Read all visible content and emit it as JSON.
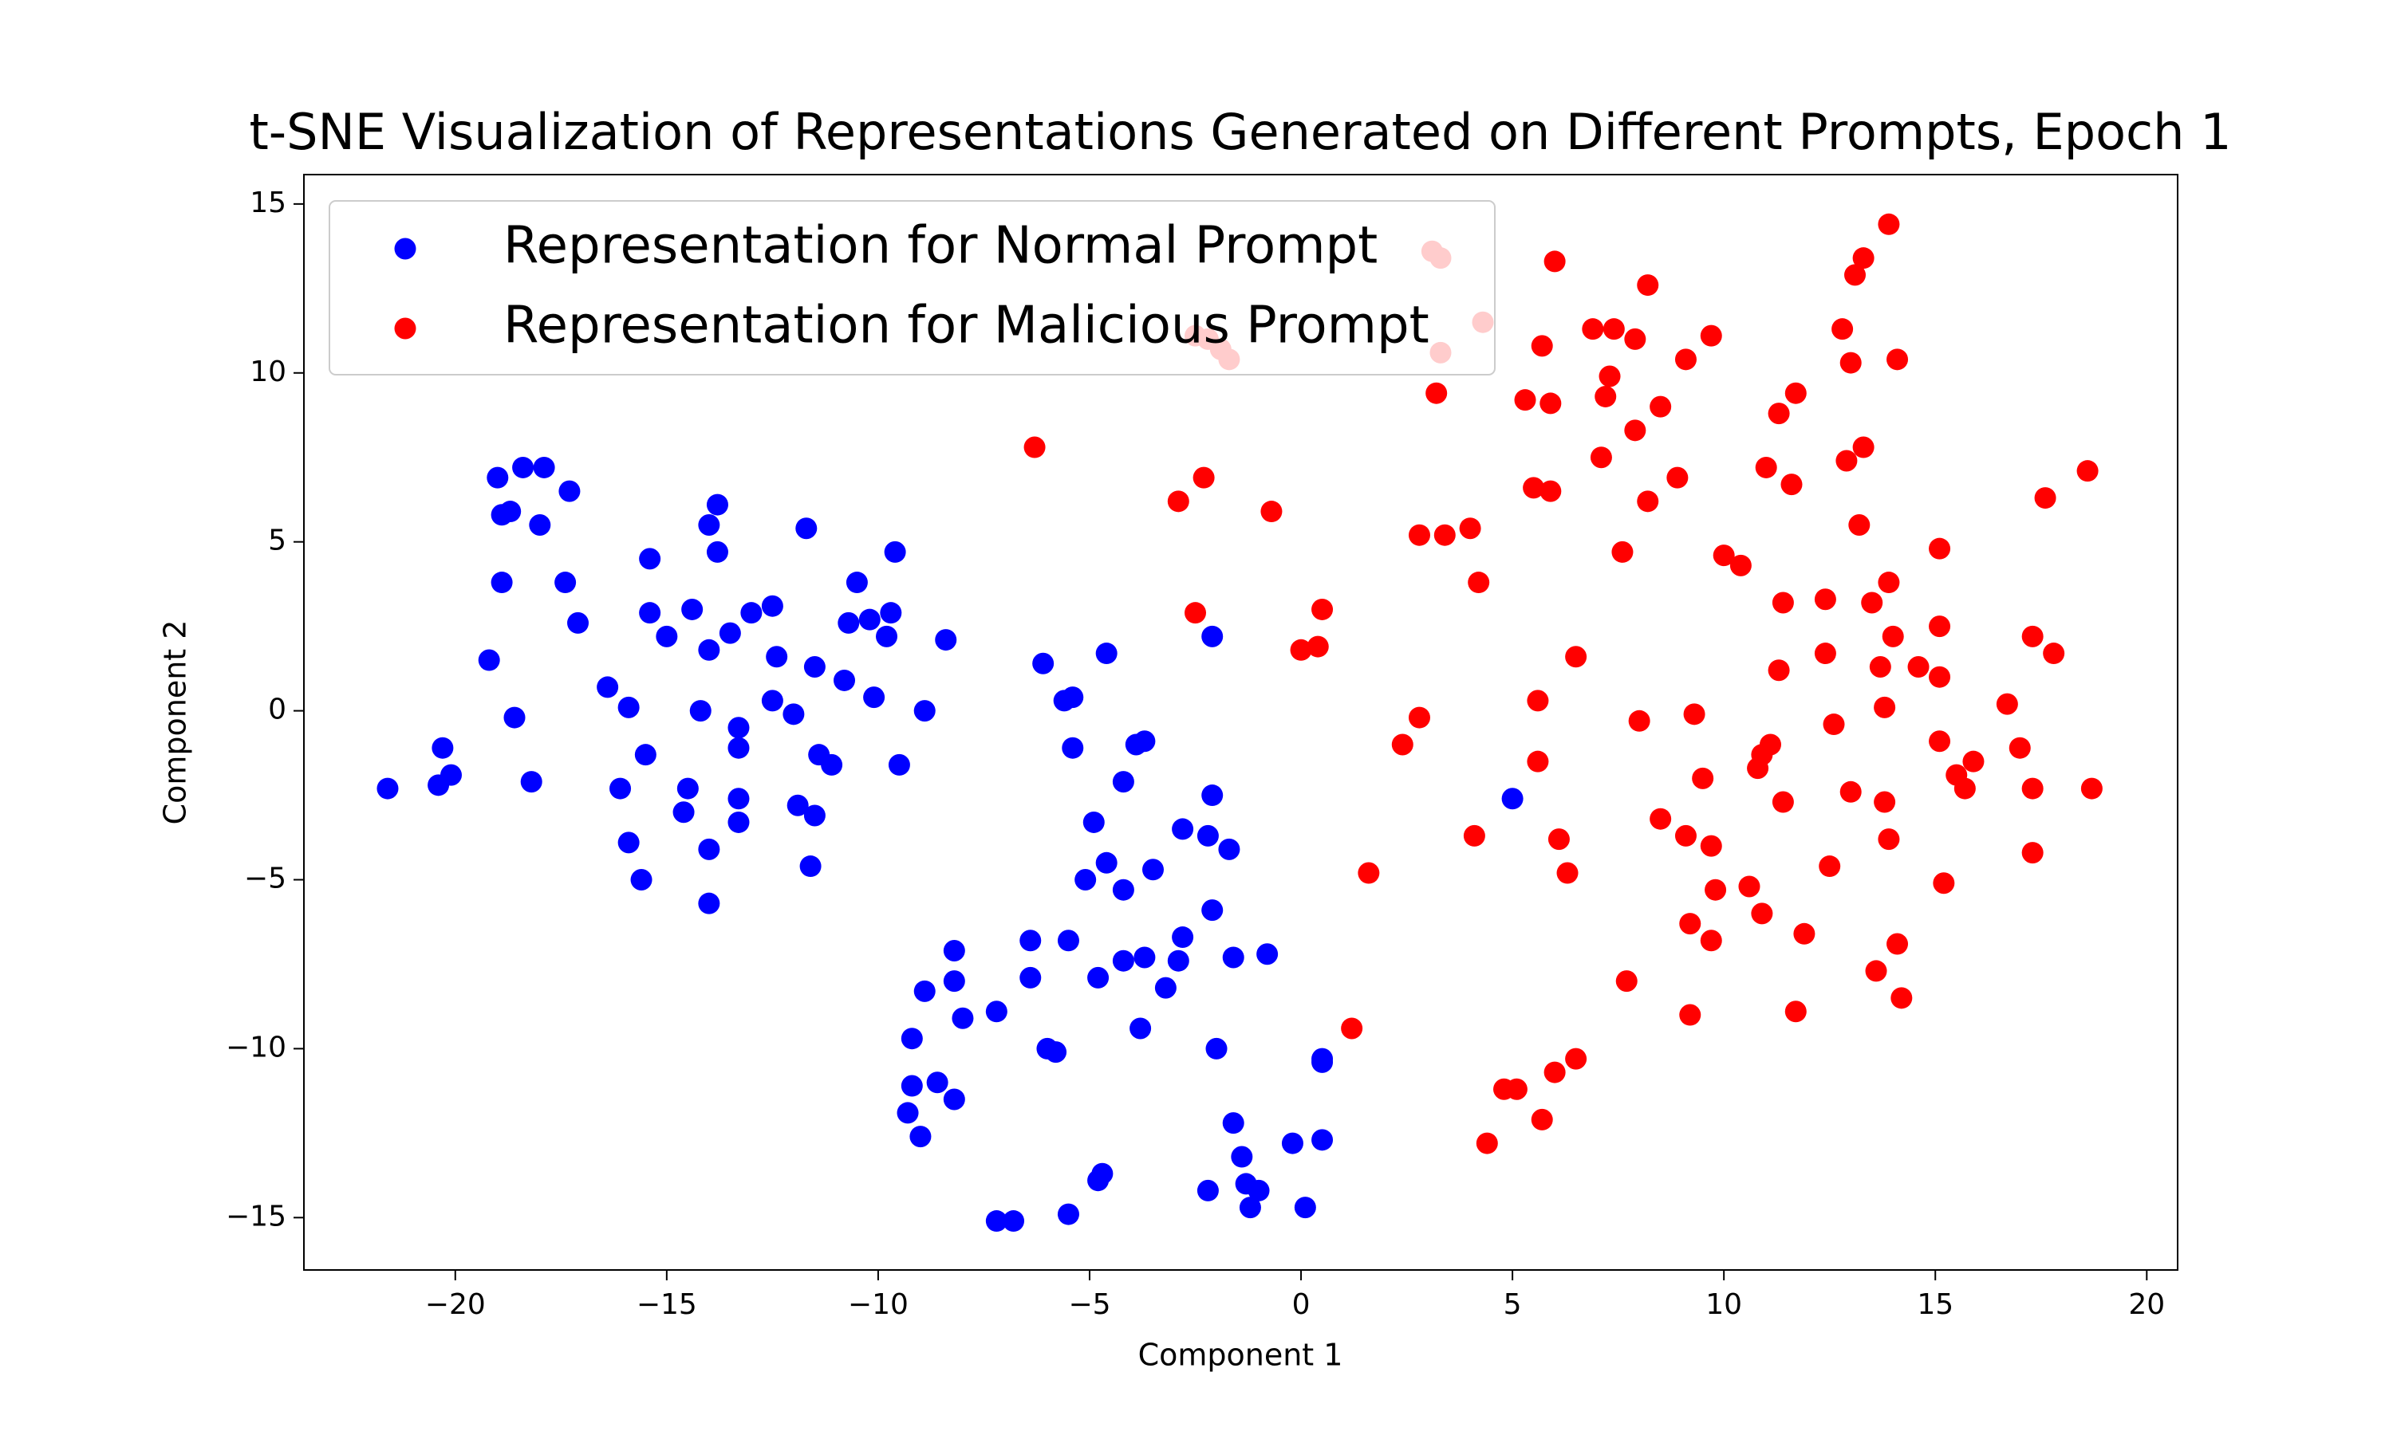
{
  "chart_data": {
    "type": "scatter",
    "title": "t-SNE Visualization of Representations Generated on Different Prompts, Epoch 1",
    "x_label": "Component 1",
    "y_label": "Component 2",
    "xlim": [
      -23.58,
      20.73
    ],
    "ylim": [
      -16.55,
      15.87
    ],
    "xticks": [
      {
        "value": -20,
        "label": "−20"
      },
      {
        "value": -15,
        "label": "−15"
      },
      {
        "value": -10,
        "label": "−10"
      },
      {
        "value": -5,
        "label": "−5"
      },
      0,
      5,
      10,
      15,
      20
    ],
    "yticks": [
      {
        "value": -15,
        "label": "−15"
      },
      {
        "value": -10,
        "label": "−10"
      },
      {
        "value": -5,
        "label": "−5"
      },
      0,
      5,
      10,
      15
    ],
    "legend": "upper left",
    "series": [
      {
        "name": "Representation for Normal Prompt",
        "color": "#0000ff",
        "x": [
          -21.6,
          -20.4,
          -20.3,
          -20.1,
          -19.0,
          -18.9,
          -18.7,
          -18.9,
          -19.2,
          -18.6,
          -18.4,
          -17.9,
          -18.0,
          -18.2,
          -17.3,
          -17.4,
          -17.1,
          -16.4,
          -15.9,
          -16.1,
          -15.9,
          -15.6,
          -15.4,
          -15.4,
          -15.0,
          -15.5,
          -14.4,
          -14.0,
          -13.8,
          -13.8,
          -13.5,
          -14.0,
          -14.2,
          -14.5,
          -14.6,
          -14.0,
          -14.0,
          -13.3,
          -13.3,
          -13.3,
          -13.3,
          -13.0,
          -12.5,
          -12.4,
          -12.5,
          -12.0,
          -11.7,
          -11.5,
          -11.4,
          -11.1,
          -11.9,
          -11.5,
          -11.6,
          -10.8,
          -10.5,
          -10.7,
          -10.2,
          -10.1,
          -9.8,
          -9.7,
          -9.6,
          -9.5,
          -8.9,
          -8.4,
          -6.1,
          -5.6,
          -5.4,
          -4.6,
          -5.4,
          -3.9,
          -3.7,
          -4.2,
          -4.9,
          -5.1,
          -4.6,
          -4.2,
          -3.5,
          -2.8,
          -2.2,
          -1.7,
          -2.1,
          -2.1,
          -2.1,
          -2.8,
          -1.6,
          -0.8,
          -2.9,
          -3.2,
          -3.7,
          -4.2,
          -4.8,
          -3.8,
          -5.5,
          -6.4,
          -6.4,
          -7.2,
          -8.2,
          -8.2,
          -8.0,
          -8.9,
          -9.2,
          -9.2,
          -9.3,
          -9.0,
          -8.6,
          -8.2,
          -6.0,
          -5.8,
          -2.0,
          -1.6,
          -1.4,
          -1.3,
          -1.0,
          -1.2,
          -2.2,
          -0.2,
          0.1,
          0.5,
          0.5,
          0.5,
          -4.7,
          -4.8,
          -5.5,
          -6.8,
          -7.2,
          5.0
        ],
        "y": [
          -2.3,
          -2.2,
          -1.1,
          -1.9,
          6.9,
          5.8,
          5.9,
          3.8,
          1.5,
          -0.2,
          7.2,
          7.2,
          5.5,
          -2.1,
          6.5,
          3.8,
          2.6,
          0.7,
          0.1,
          -2.3,
          -3.9,
          -5.0,
          4.5,
          2.9,
          2.2,
          -1.3,
          3.0,
          5.5,
          6.1,
          4.7,
          2.3,
          1.8,
          0.0,
          -2.3,
          -3.0,
          -4.1,
          -5.7,
          -0.5,
          -1.1,
          -2.6,
          -3.3,
          2.9,
          3.1,
          1.6,
          0.3,
          -0.1,
          5.4,
          1.3,
          -1.3,
          -1.6,
          -2.8,
          -3.1,
          -4.6,
          0.9,
          3.8,
          2.6,
          2.7,
          0.4,
          2.2,
          2.9,
          4.7,
          -1.6,
          0.0,
          2.1,
          1.4,
          0.3,
          0.4,
          1.7,
          -1.1,
          -1.0,
          -0.9,
          -2.1,
          -3.3,
          -5.0,
          -4.5,
          -5.3,
          -4.7,
          -3.5,
          -3.7,
          -4.1,
          -2.5,
          2.2,
          -5.9,
          -6.7,
          -7.3,
          -7.2,
          -7.4,
          -8.2,
          -7.3,
          -7.4,
          -7.9,
          -9.4,
          -6.8,
          -6.8,
          -7.9,
          -8.9,
          -7.1,
          -8.0,
          -9.1,
          -8.3,
          -9.7,
          -11.1,
          -11.9,
          -12.6,
          -11.0,
          -11.5,
          -10.0,
          -10.1,
          -10.0,
          -12.2,
          -13.2,
          -14.0,
          -14.2,
          -14.7,
          -14.2,
          -12.8,
          -14.7,
          -12.7,
          -10.4,
          -10.3,
          -13.7,
          -13.9,
          -14.9,
          -15.1,
          -15.1,
          -2.6
        ]
      },
      {
        "name": "Representation for Malicious Prompt",
        "color": "#ff0000",
        "x": [
          -6.3,
          -2.9,
          -2.3,
          -0.7,
          -2.5,
          0.5,
          0.4,
          0.0,
          2.4,
          2.8,
          1.6,
          1.2,
          2.8,
          3.4,
          4.0,
          4.2,
          3.2,
          3.3,
          3.1,
          3.3,
          4.3,
          -2.2,
          -1.9,
          -1.7,
          -2.5,
          6.0,
          5.7,
          5.3,
          5.9,
          5.5,
          5.9,
          6.9,
          7.4,
          7.9,
          8.2,
          7.3,
          7.2,
          8.5,
          7.9,
          7.1,
          8.2,
          8.9,
          7.6,
          9.1,
          9.7,
          10.0,
          10.4,
          11.0,
          11.6,
          11.3,
          11.7,
          12.8,
          13.0,
          13.1,
          13.3,
          13.9,
          14.1,
          12.9,
          13.3,
          13.2,
          11.4,
          12.4,
          13.5,
          13.9,
          14.0,
          15.1,
          15.1,
          12.4,
          11.3,
          13.7,
          14.6,
          15.1,
          13.8,
          5.6,
          6.5,
          8.0,
          9.3,
          12.6,
          11.1,
          10.9,
          10.8,
          9.5,
          5.6,
          4.1,
          6.1,
          6.3,
          8.5,
          9.1,
          9.7,
          11.4,
          13.0,
          13.8,
          13.9,
          12.5,
          10.6,
          9.8,
          9.2,
          10.9,
          9.7,
          11.9,
          14.1,
          13.6,
          7.7,
          9.2,
          11.7,
          14.2,
          15.1,
          15.5,
          15.7,
          15.9,
          15.2,
          16.7,
          17.0,
          17.3,
          17.3,
          17.3,
          17.8,
          17.6,
          18.6,
          18.7,
          6.5,
          6.0,
          5.1,
          4.8,
          5.7,
          4.4
        ],
        "y": [
          7.8,
          6.2,
          6.9,
          5.9,
          2.9,
          3.0,
          1.9,
          1.8,
          -1.0,
          -0.2,
          -4.8,
          -9.4,
          5.2,
          5.2,
          5.4,
          3.8,
          9.4,
          10.6,
          13.6,
          13.4,
          11.5,
          11.0,
          10.7,
          10.4,
          11.1,
          13.3,
          10.8,
          9.2,
          9.1,
          6.6,
          6.5,
          11.3,
          11.3,
          11.0,
          12.6,
          9.9,
          9.3,
          9.0,
          8.3,
          7.5,
          6.2,
          6.9,
          4.7,
          10.4,
          11.1,
          4.6,
          4.3,
          7.2,
          6.7,
          8.8,
          9.4,
          11.3,
          10.3,
          12.9,
          13.4,
          14.4,
          10.4,
          7.4,
          7.8,
          5.5,
          3.2,
          3.3,
          3.2,
          3.8,
          2.2,
          4.8,
          2.5,
          1.7,
          1.2,
          1.3,
          1.3,
          1.0,
          0.1,
          0.3,
          1.6,
          -0.3,
          -0.1,
          -0.4,
          -1.0,
          -1.3,
          -1.7,
          -2.0,
          -1.5,
          -3.7,
          -3.8,
          -4.8,
          -3.2,
          -3.7,
          -4.0,
          -2.7,
          -2.4,
          -2.7,
          -3.8,
          -4.6,
          -5.2,
          -5.3,
          -6.3,
          -6.0,
          -6.8,
          -6.6,
          -6.9,
          -7.7,
          -8.0,
          -9.0,
          -8.9,
          -8.5,
          -0.9,
          -1.9,
          -2.3,
          -1.5,
          -5.1,
          0.2,
          -1.1,
          -2.3,
          -4.2,
          2.2,
          1.7,
          6.3,
          7.1,
          -2.3,
          -10.3,
          -10.7,
          -11.2,
          -11.2,
          -12.1,
          -12.8
        ]
      }
    ]
  }
}
